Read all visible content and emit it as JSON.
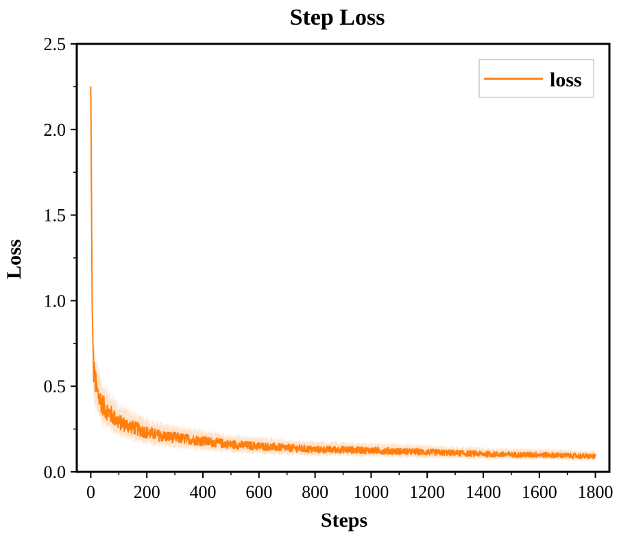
{
  "chart_data": {
    "type": "line",
    "title": "Step Loss",
    "xlabel": "Steps",
    "ylabel": "Loss",
    "xlim": [
      -50,
      1850
    ],
    "ylim": [
      0.0,
      2.5
    ],
    "xticks": [
      0,
      200,
      400,
      600,
      800,
      1000,
      1200,
      1400,
      1600,
      1800
    ],
    "xtick_labels": [
      "0",
      "200",
      "400",
      "600",
      "800",
      "1000",
      "1200",
      "1400",
      "1600",
      "1800"
    ],
    "yticks": [
      0.0,
      0.5,
      1.0,
      1.5,
      2.0,
      2.5
    ],
    "ytick_labels": [
      "0.0",
      "0.5",
      "1.0",
      "1.5",
      "2.0",
      "2.5"
    ],
    "grid": false,
    "legend": {
      "position": "top-right",
      "entries": [
        "loss"
      ]
    },
    "series": [
      {
        "name": "loss",
        "color": "#ff7f0e",
        "x": [
          0,
          2,
          5,
          10,
          20,
          30,
          50,
          75,
          100,
          150,
          200,
          250,
          300,
          400,
          500,
          600,
          700,
          800,
          900,
          1000,
          1100,
          1200,
          1300,
          1400,
          1500,
          1600,
          1700,
          1800
        ],
        "y": [
          2.25,
          1.7,
          0.95,
          0.6,
          0.48,
          0.43,
          0.37,
          0.33,
          0.29,
          0.26,
          0.23,
          0.21,
          0.2,
          0.18,
          0.16,
          0.15,
          0.14,
          0.13,
          0.13,
          0.125,
          0.12,
          0.115,
          0.11,
          0.105,
          0.1,
          0.1,
          0.095,
          0.09
        ]
      }
    ]
  }
}
